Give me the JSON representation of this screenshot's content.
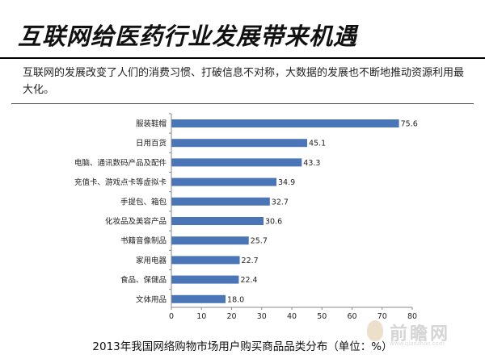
{
  "header": {
    "title": "互联网给医药行业发展带来机遇",
    "intro": "互联网的发展改变了人们的消费习惯、打破信息不对称，大数据的发展也不断地推动资源利用最大化。"
  },
  "chart_data": {
    "type": "bar",
    "orientation": "horizontal",
    "title": "2013年我国网络购物市场用户购买商品品类分布（单位：%）",
    "categories": [
      "服装鞋帽",
      "日用百货",
      "电脑、通讯数码产品及配件",
      "充值卡、游戏点卡等虚拟卡",
      "手提包、箱包",
      "化妆品及美容产品",
      "书籍音像制品",
      "家用电器",
      "食品、保健品",
      "文体用品"
    ],
    "values": [
      75.6,
      45.1,
      43.3,
      34.9,
      32.7,
      30.6,
      25.7,
      22.7,
      22.4,
      18.0
    ],
    "value_labels": [
      "75.6",
      "45.1",
      "43.3",
      "34.9",
      "32.7",
      "30.6",
      "25.7",
      "22.7",
      "22.4",
      "18.0"
    ],
    "xlim": [
      0,
      80
    ],
    "xticks": [
      "0",
      "10",
      "20",
      "30",
      "40",
      "50",
      "60",
      "70",
      "80"
    ],
    "bar_color": "#4a76b8",
    "grid": false
  },
  "watermark": {
    "text": "前瞻网",
    "url": "www.qianzhan.com"
  }
}
